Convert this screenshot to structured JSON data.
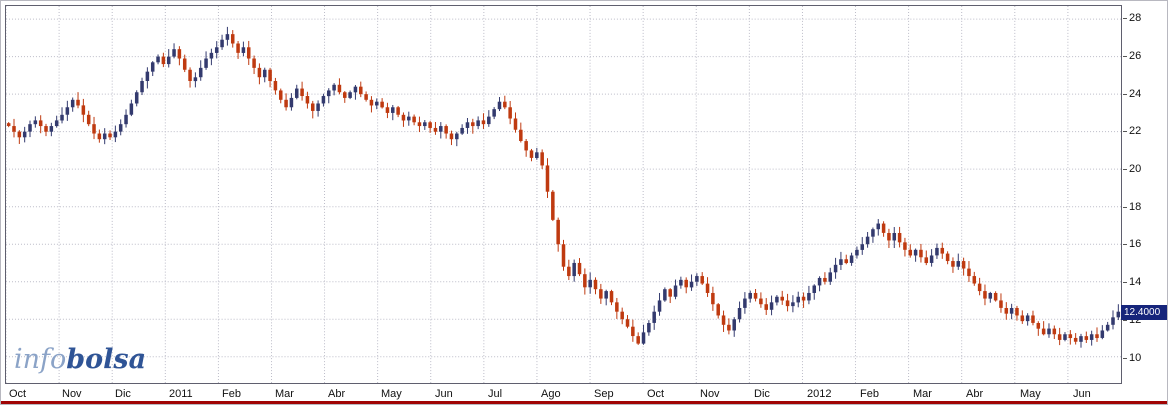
{
  "logo": {
    "part1": "info",
    "part2": "bolsa",
    "part1_color": "#8ba3c7",
    "part2_color": "#2f5496"
  },
  "chart_data": {
    "type": "candlestick",
    "title": "",
    "xlabel": "",
    "ylabel": "",
    "x_axis_labels": [
      "Oct",
      "Nov",
      "Dic",
      "2011",
      "Feb",
      "Mar",
      "Abr",
      "May",
      "Jun",
      "Jul",
      "Ago",
      "Sep",
      "Oct",
      "Nov",
      "Dic",
      "2012",
      "Feb",
      "Mar",
      "Abr",
      "May",
      "Jun"
    ],
    "points_per_month": 10,
    "y_ticks": [
      10,
      12,
      14,
      16,
      18,
      20,
      22,
      24,
      26,
      28
    ],
    "ylim": [
      8.6,
      28.7
    ],
    "grid": "dotted",
    "legend": "none",
    "axis_side": "right",
    "close": [
      22.3,
      22.0,
      21.7,
      22.0,
      22.4,
      22.6,
      22.3,
      22.0,
      22.3,
      22.6,
      22.9,
      23.3,
      23.7,
      23.4,
      22.9,
      22.4,
      21.9,
      21.6,
      21.9,
      21.7,
      22.0,
      22.4,
      22.9,
      23.5,
      24.1,
      24.7,
      25.2,
      25.7,
      26.0,
      25.6,
      26.0,
      26.4,
      25.9,
      25.3,
      24.7,
      24.9,
      25.4,
      25.9,
      26.2,
      26.5,
      26.9,
      27.2,
      26.7,
      26.2,
      26.5,
      25.9,
      25.4,
      24.9,
      25.3,
      24.7,
      24.2,
      23.7,
      23.3,
      23.8,
      24.3,
      23.9,
      23.5,
      23.1,
      23.5,
      23.9,
      24.2,
      24.5,
      24.1,
      23.8,
      24.1,
      24.4,
      24.0,
      23.7,
      23.4,
      23.6,
      23.3,
      23.0,
      23.3,
      22.9,
      22.6,
      22.8,
      22.5,
      22.3,
      22.5,
      22.2,
      22.0,
      22.3,
      21.9,
      21.6,
      21.9,
      22.2,
      22.5,
      22.3,
      22.6,
      22.4,
      22.8,
      23.2,
      23.6,
      23.3,
      22.7,
      22.1,
      21.5,
      21.0,
      20.6,
      20.9,
      20.2,
      18.8,
      17.3,
      16.0,
      14.8,
      14.3,
      15.0,
      14.4,
      13.7,
      14.1,
      13.6,
      13.1,
      13.5,
      12.9,
      12.4,
      12.0,
      11.6,
      11.1,
      10.7,
      11.3,
      11.8,
      12.4,
      13.0,
      13.6,
      13.2,
      13.8,
      14.1,
      13.7,
      14.0,
      14.3,
      13.9,
      13.4,
      12.8,
      12.2,
      11.7,
      11.4,
      12.0,
      12.6,
      13.1,
      13.4,
      13.1,
      12.8,
      12.5,
      12.9,
      13.2,
      13.0,
      12.7,
      12.9,
      13.2,
      13.0,
      13.4,
      13.8,
      14.2,
      14.0,
      14.5,
      14.9,
      15.2,
      15.0,
      15.4,
      15.7,
      16.0,
      16.4,
      16.8,
      17.1,
      16.6,
      16.2,
      16.6,
      16.1,
      15.7,
      15.4,
      15.7,
      15.3,
      15.0,
      15.4,
      15.8,
      15.5,
      15.1,
      14.8,
      15.1,
      14.7,
      14.3,
      13.9,
      13.5,
      13.1,
      13.4,
      13.0,
      12.6,
      12.3,
      12.6,
      12.2,
      11.9,
      12.2,
      11.8,
      11.5,
      11.2,
      11.5,
      11.2,
      10.9,
      11.2,
      11.0,
      10.8,
      11.1,
      10.9,
      11.2,
      11.0,
      11.4,
      11.7,
      12.1,
      12.4
    ],
    "last_price": 12.4,
    "price_label": "12.4000",
    "price_label_bg": "#16257b",
    "up_color": "#333a6e",
    "down_color": "#bf3a10",
    "grid_color": "#bcbcc8",
    "wick_max": 0.35,
    "bottom_line_color": "#a00404"
  }
}
